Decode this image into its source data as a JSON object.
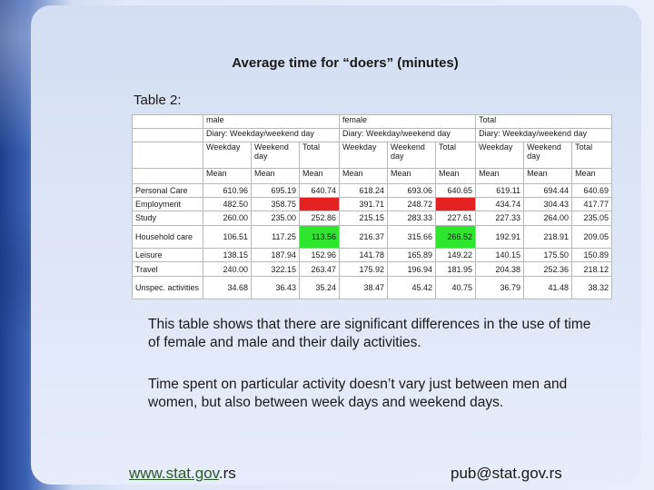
{
  "title": "Average time for “doers” (minutes)",
  "table_label": "Table 2:",
  "table": {
    "groups": [
      "male",
      "female",
      "Total"
    ],
    "diary_label": "Diary: Weekday/weekend day",
    "sub_headers": [
      "Weekday",
      "Weekend day",
      "Total"
    ],
    "stat": "Mean",
    "rows": [
      {
        "activity": "Personal Care",
        "values": [
          "610.96",
          "695.19",
          "640.74",
          "618.24",
          "693.06",
          "640.65",
          "619.11",
          "694.44",
          "640.69"
        ]
      },
      {
        "activity": "Employment",
        "values": [
          "482.50",
          "358.75",
          "445.13",
          "391.71",
          "248.72",
          "366.43",
          "434.74",
          "304.43",
          "417.77"
        ]
      },
      {
        "activity": "Study",
        "values": [
          "260.00",
          "235.00",
          "252.86",
          "215.15",
          "283.33",
          "227.61",
          "227.33",
          "264.00",
          "235.05"
        ]
      },
      {
        "activity": "Household care",
        "values": [
          "106.51",
          "117.25",
          "113.56",
          "216.37",
          "315.66",
          "266.52",
          "192.91",
          "218.91",
          "209.05"
        ]
      },
      {
        "activity": "Leisure",
        "values": [
          "138.15",
          "187.94",
          "152.96",
          "141.78",
          "165.89",
          "149.22",
          "140.15",
          "175.50",
          "150.89"
        ]
      },
      {
        "activity": "Travel",
        "values": [
          "240.00",
          "322.15",
          "263.47",
          "175.92",
          "196.94",
          "181.95",
          "204.38",
          "252.36",
          "218.12"
        ]
      },
      {
        "activity": "Unspec. activities",
        "values": [
          "34.68",
          "36.43",
          "35.24",
          "38.47",
          "45.42",
          "40.75",
          "36.79",
          "41.48",
          "38.32"
        ]
      }
    ]
  },
  "paragraph1": "This table shows that there are significant differences in the use of time of female and male and their daily activities.",
  "paragraph2": "Time spent on particular activity doesn’t vary just between men and women, but also between week days and weekend days.",
  "footer": {
    "link_main": "www.stat.gov",
    "link_suffix": ".rs",
    "email": "pub@stat.gov.rs"
  },
  "highlight_colors": {
    "red": "#e52222",
    "green": "#2ee62e"
  }
}
